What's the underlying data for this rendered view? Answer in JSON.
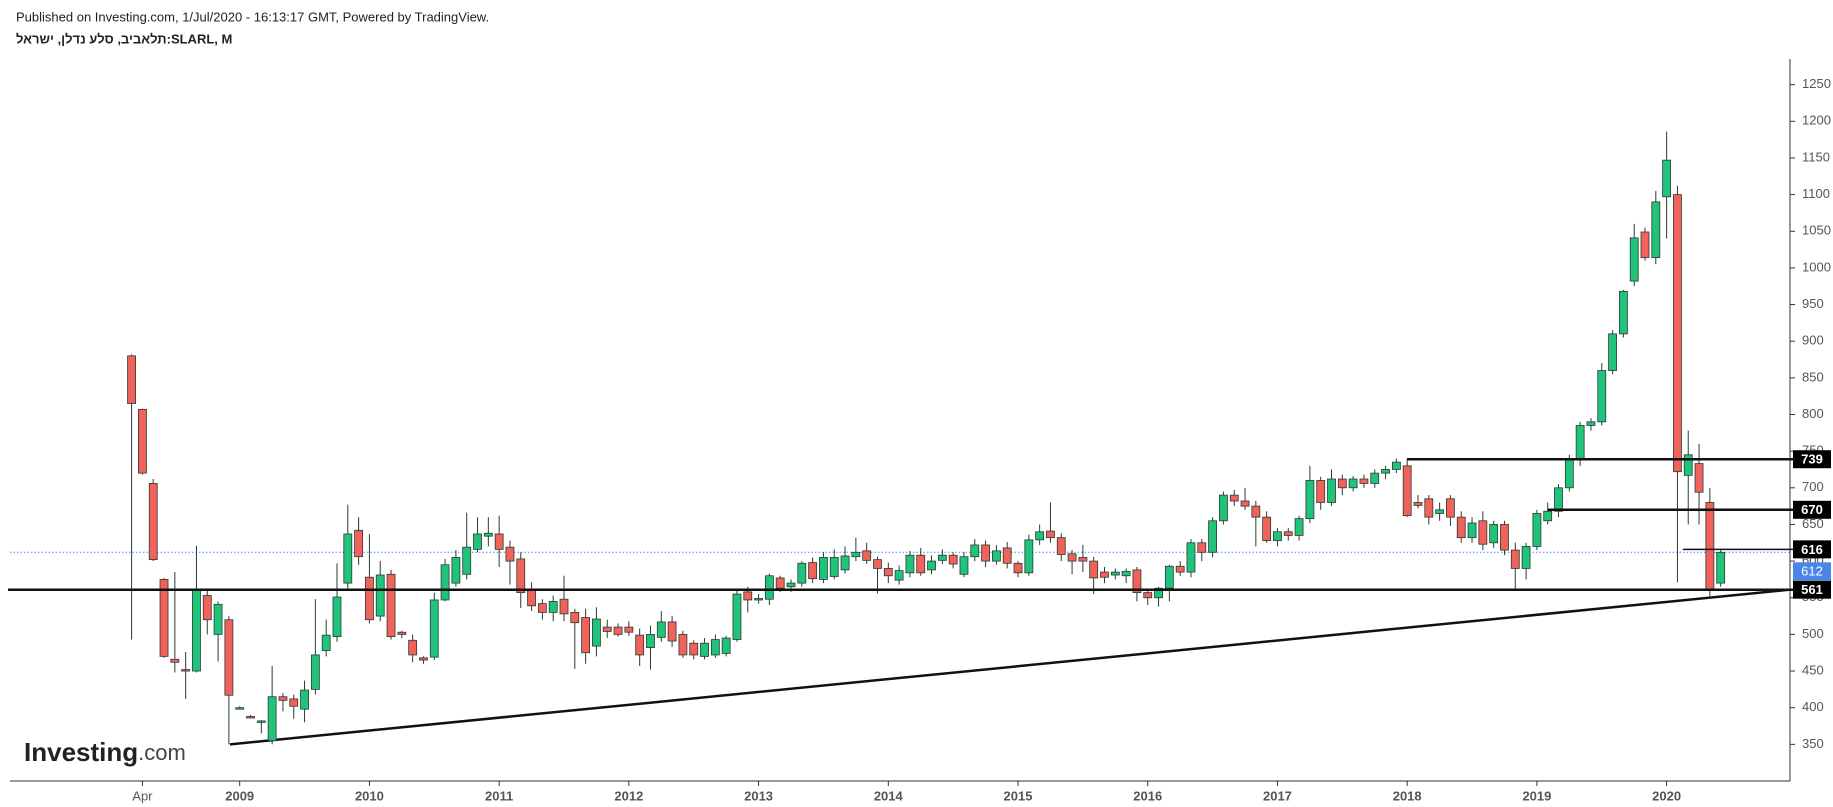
{
  "header": {
    "published": "Published on Investing.com, 1/Jul/2020 - 16:13:17 GMT, Powered by TradingView."
  },
  "chart_data": {
    "type": "candlestick",
    "title": "תלאביב, סלע נדלן, ישראל:SLARL, M",
    "watermark": {
      "brand": "Investing",
      "suffix": ".com"
    },
    "categories": [
      null,
      "Apr",
      null,
      null,
      null,
      null,
      null,
      null,
      null,
      null,
      "2009",
      null,
      null,
      null,
      null,
      null,
      null,
      null,
      null,
      null,
      null,
      null,
      "2010",
      null,
      null,
      null,
      null,
      null,
      null,
      null,
      null,
      null,
      null,
      null,
      "2011",
      null,
      null,
      null,
      null,
      null,
      null,
      null,
      null,
      null,
      null,
      null,
      "2012",
      null,
      null,
      null,
      null,
      null,
      null,
      null,
      null,
      null,
      null,
      null,
      "2013",
      null,
      null,
      null,
      null,
      null,
      null,
      null,
      null,
      null,
      null,
      null,
      "2014",
      null,
      null,
      null,
      null,
      null,
      null,
      null,
      null,
      null,
      null,
      null,
      "2015",
      null,
      null,
      null,
      null,
      null,
      null,
      null,
      null,
      null,
      null,
      null,
      "2016",
      null,
      null,
      null,
      null,
      null,
      null,
      null,
      null,
      null,
      null,
      null,
      "2017",
      null,
      null,
      null,
      null,
      null,
      null,
      null,
      null,
      null,
      null,
      null,
      "2018",
      null,
      null,
      null,
      null,
      null,
      null,
      null,
      null,
      null,
      null,
      null,
      "2019",
      null,
      null,
      null,
      null,
      null,
      null,
      null,
      null,
      null,
      null,
      null,
      "2020",
      null,
      null,
      null,
      null,
      null
    ],
    "open": [
      880,
      807,
      706,
      575,
      466,
      452,
      450,
      553,
      500,
      520,
      400,
      388,
      380,
      355,
      415,
      412,
      398,
      425,
      478,
      497,
      570,
      642,
      578,
      525,
      582,
      503,
      492,
      468,
      469,
      547,
      570,
      582,
      616,
      634,
      637,
      619,
      603,
      561,
      542,
      530,
      548,
      530,
      523,
      484,
      510,
      510,
      510,
      499,
      482,
      496,
      517,
      500,
      488,
      470,
      472,
      474,
      493,
      558,
      548,
      548,
      577,
      565,
      570,
      598,
      575,
      579,
      588,
      606,
      614,
      602,
      590,
      574,
      584,
      608,
      588,
      601,
      608,
      582,
      606,
      622,
      600,
      618,
      597,
      584,
      629,
      641,
      632,
      610,
      605,
      600,
      585,
      581,
      580,
      588,
      557,
      550,
      563,
      593,
      585,
      625,
      612,
      655,
      690,
      682,
      675,
      660,
      628,
      640,
      635,
      658,
      710,
      680,
      712,
      700,
      712,
      706,
      720,
      725,
      730,
      680,
      685,
      665,
      685,
      660,
      632,
      655,
      625,
      650,
      615,
      590,
      620,
      655,
      668,
      700,
      740,
      785,
      790,
      860,
      910,
      982,
      1049,
      1014,
      1097,
      1100,
      717,
      733,
      680,
      570
    ],
    "high": [
      882,
      808,
      712,
      577,
      585,
      476,
      621,
      562,
      545,
      525,
      402,
      390,
      383,
      457,
      420,
      418,
      437,
      548,
      520,
      597,
      677,
      660,
      637,
      600,
      588,
      505,
      500,
      470,
      557,
      603,
      615,
      666,
      660,
      660,
      662,
      628,
      612,
      571,
      548,
      553,
      580,
      535,
      535,
      537,
      520,
      515,
      518,
      508,
      512,
      532,
      525,
      505,
      492,
      495,
      500,
      498,
      562,
      565,
      555,
      583,
      580,
      575,
      600,
      605,
      612,
      616,
      620,
      632,
      625,
      606,
      598,
      594,
      614,
      618,
      608,
      616,
      612,
      612,
      630,
      628,
      622,
      626,
      600,
      636,
      650,
      680,
      638,
      615,
      622,
      606,
      592,
      590,
      590,
      592,
      562,
      565,
      595,
      600,
      630,
      630,
      660,
      695,
      697,
      700,
      682,
      668,
      645,
      645,
      662,
      730,
      715,
      725,
      718,
      716,
      718,
      725,
      730,
      740,
      740,
      690,
      690,
      680,
      690,
      668,
      660,
      668,
      655,
      655,
      625,
      625,
      670,
      680,
      705,
      745,
      790,
      795,
      870,
      915,
      970,
      1060,
      1055,
      1105,
      1186,
      1112,
      778,
      760,
      700,
      616
    ],
    "low": [
      493,
      718,
      600,
      468,
      448,
      412,
      448,
      500,
      463,
      350,
      398,
      386,
      365,
      350,
      395,
      385,
      380,
      418,
      470,
      490,
      560,
      595,
      515,
      518,
      493,
      495,
      462,
      460,
      465,
      545,
      565,
      575,
      612,
      620,
      592,
      568,
      536,
      532,
      520,
      518,
      518,
      453,
      460,
      470,
      495,
      497,
      498,
      457,
      452,
      490,
      483,
      468,
      466,
      466,
      468,
      470,
      490,
      530,
      542,
      540,
      558,
      558,
      565,
      570,
      570,
      575,
      583,
      600,
      596,
      556,
      570,
      568,
      578,
      580,
      582,
      596,
      590,
      578,
      600,
      592,
      595,
      590,
      578,
      580,
      622,
      625,
      600,
      582,
      585,
      555,
      570,
      575,
      570,
      545,
      540,
      538,
      545,
      580,
      578,
      600,
      605,
      650,
      675,
      670,
      620,
      625,
      620,
      628,
      628,
      652,
      670,
      675,
      690,
      695,
      700,
      700,
      712,
      720,
      660,
      672,
      650,
      655,
      648,
      625,
      625,
      615,
      618,
      608,
      562,
      575,
      615,
      650,
      660,
      695,
      730,
      778,
      785,
      855,
      905,
      975,
      1010,
      1005,
      1040,
      571,
      650,
      650,
      550,
      565
    ],
    "close": [
      815,
      720,
      602,
      470,
      462,
      450,
      562,
      520,
      541,
      417,
      400,
      387,
      382,
      415,
      410,
      402,
      424,
      472,
      499,
      551,
      637,
      606,
      520,
      581,
      497,
      500,
      472,
      465,
      547,
      595,
      605,
      619,
      637,
      638,
      616,
      600,
      557,
      539,
      530,
      545,
      528,
      516,
      475,
      521,
      504,
      500,
      503,
      472,
      500,
      517,
      491,
      472,
      472,
      488,
      493,
      495,
      555,
      547,
      549,
      580,
      563,
      570,
      597,
      576,
      605,
      605,
      607,
      612,
      601,
      590,
      580,
      587,
      608,
      584,
      600,
      608,
      596,
      606,
      622,
      600,
      614,
      597,
      584,
      629,
      640,
      632,
      609,
      600,
      600,
      577,
      578,
      585,
      586,
      557,
      550,
      563,
      593,
      585,
      625,
      612,
      655,
      690,
      682,
      675,
      660,
      628,
      640,
      635,
      658,
      710,
      680,
      712,
      700,
      712,
      706,
      720,
      725,
      735,
      662,
      676,
      660,
      670,
      660,
      632,
      652,
      623,
      650,
      615,
      590,
      620,
      665,
      668,
      700,
      740,
      785,
      790,
      860,
      910,
      968,
      1041,
      1014,
      1090,
      1147,
      722,
      745,
      694,
      560,
      612
    ],
    "up_color": "#1fc47a",
    "down_color": "#f0625a",
    "ylim": [
      300,
      1285
    ],
    "yticks": [
      350,
      400,
      450,
      500,
      550,
      600,
      650,
      700,
      750,
      800,
      850,
      900,
      950,
      1000,
      1050,
      1100,
      1150,
      1200,
      1250
    ],
    "levels": [
      739,
      670,
      616,
      561
    ],
    "last_price": 612,
    "last_price_color": "#4a86e8",
    "trendline": [
      350,
      561
    ]
  }
}
